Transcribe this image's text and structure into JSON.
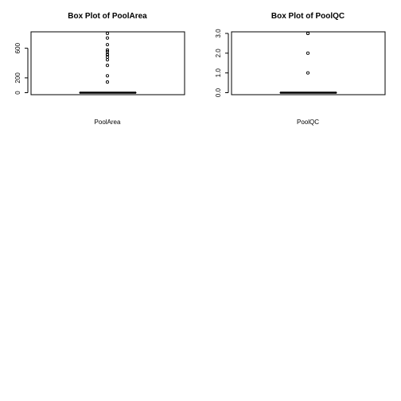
{
  "chart_data": [
    {
      "type": "boxplot",
      "title": "Box Plot of  PoolArea",
      "xlabel": "PoolArea",
      "ylabel": "",
      "yticks": [
        0,
        200,
        600
      ],
      "ylim": [
        0,
        800
      ],
      "box": {
        "min": 0,
        "q1": 0,
        "median": 0,
        "q3": 0,
        "max": 0
      },
      "outliers": [
        144,
        228,
        368,
        444,
        480,
        512,
        519,
        555,
        576,
        648,
        738,
        800
      ]
    },
    {
      "type": "boxplot",
      "title": "Box Plot of  PoolQC",
      "xlabel": "PoolQC",
      "ylabel": "",
      "yticks": [
        0.0,
        1.0,
        2.0,
        3.0
      ],
      "yticklabels": [
        "0.0",
        "1.0",
        "2.0",
        "3.0"
      ],
      "ylim": [
        0,
        3
      ],
      "box": {
        "min": 0,
        "q1": 0,
        "median": 0,
        "q3": 0,
        "max": 0
      },
      "outliers": [
        1,
        2,
        3,
        3
      ]
    }
  ]
}
